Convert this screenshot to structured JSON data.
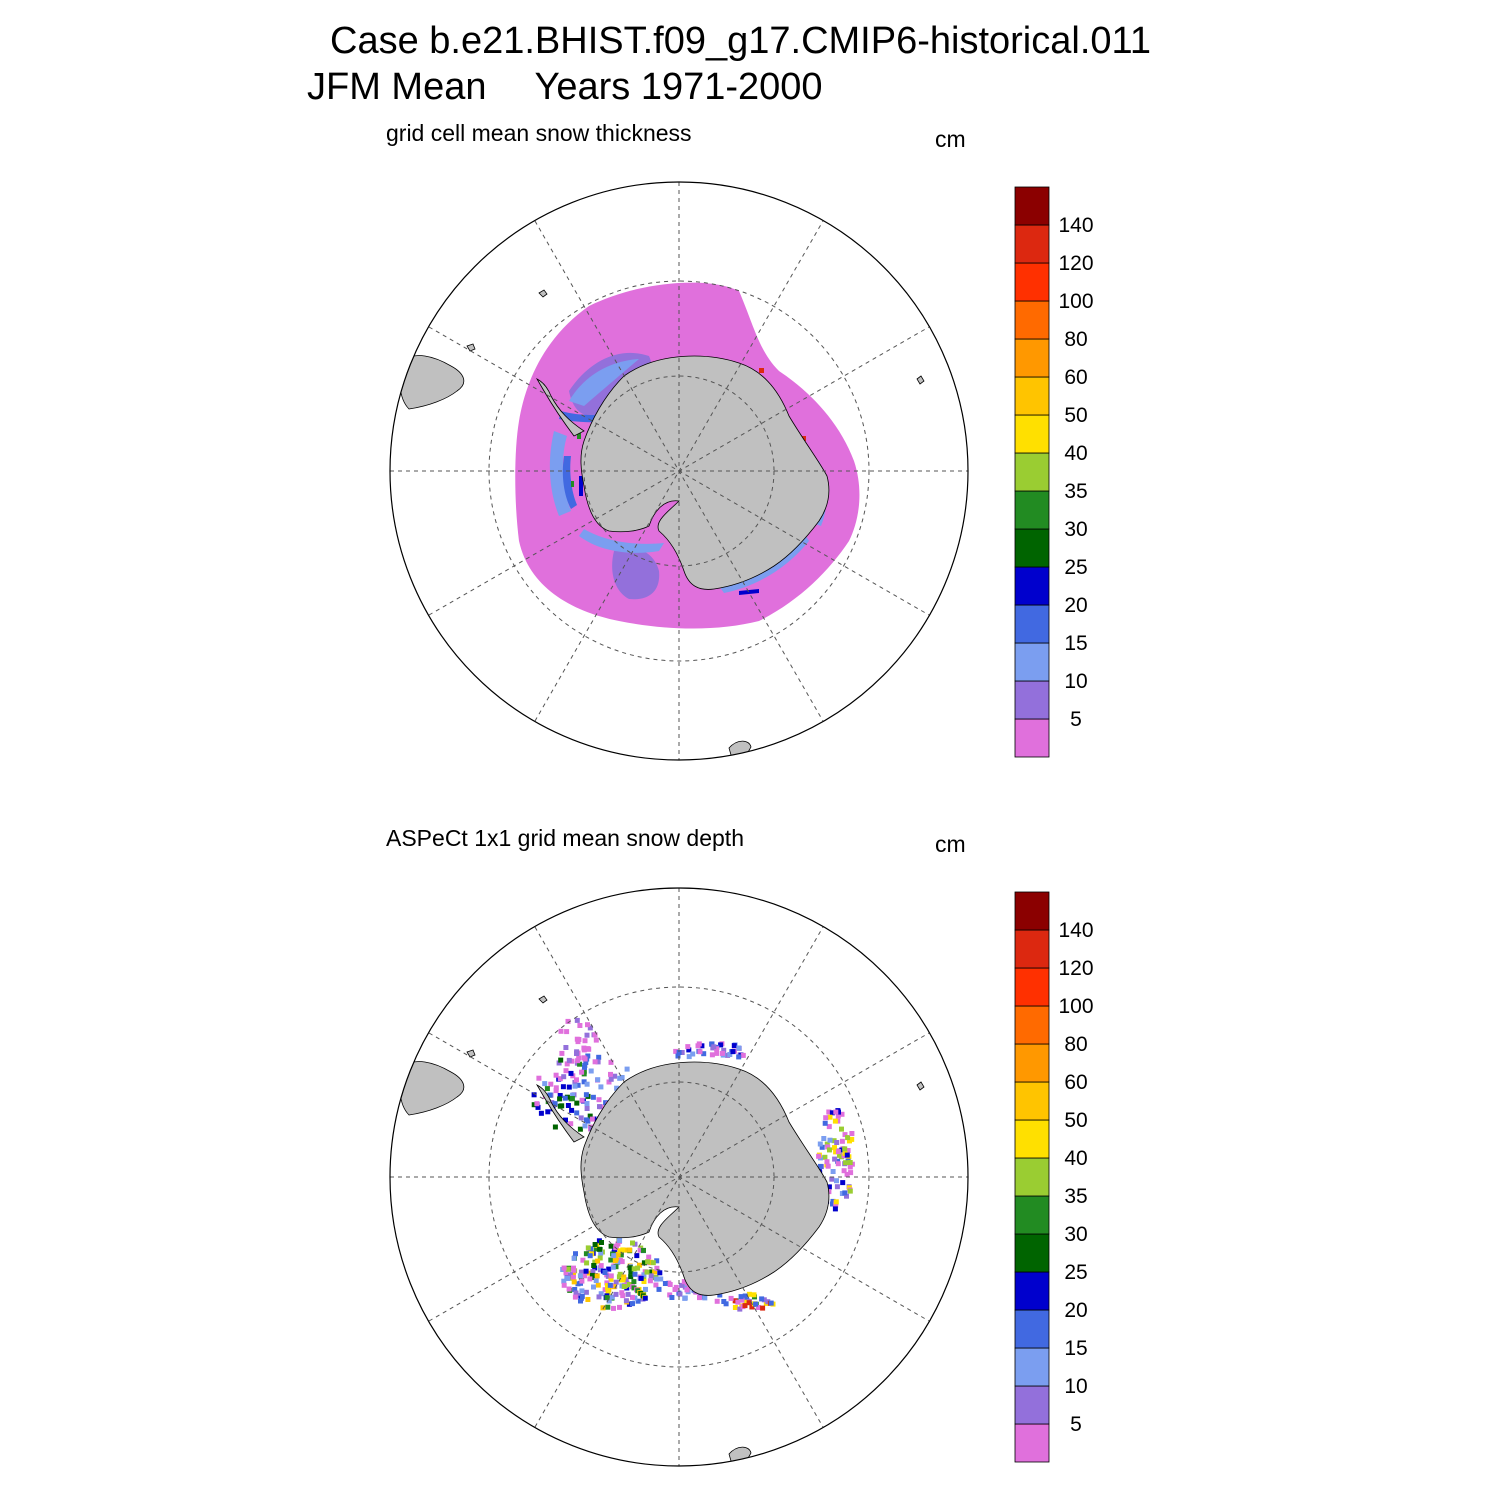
{
  "header": {
    "case_line": "Case b.e21.BHIST.f09_g17.CMIP6-historical.011",
    "season": "JFM Mean",
    "years": "Years 1971-2000"
  },
  "panels": [
    {
      "title": "grid cell mean snow thickness",
      "units": "cm"
    },
    {
      "title": "ASPeCt 1x1 grid mean snow depth",
      "units": "cm"
    }
  ],
  "colorbar": {
    "labels": [
      "5",
      "10",
      "15",
      "20",
      "25",
      "30",
      "35",
      "40",
      "50",
      "60",
      "80",
      "100",
      "120",
      "140"
    ],
    "colors": [
      "#e070dc",
      "#9370db",
      "#7b9ef0",
      "#4169e1",
      "#0000cd",
      "#006400",
      "#228b22",
      "#9acd32",
      "#ffe000",
      "#ffc400",
      "#ff9800",
      "#ff6a00",
      "#ff3000",
      "#dc2810",
      "#8b0000"
    ]
  },
  "map_colors": {
    "land": "#c0c0c0",
    "grid": "#555555"
  }
}
